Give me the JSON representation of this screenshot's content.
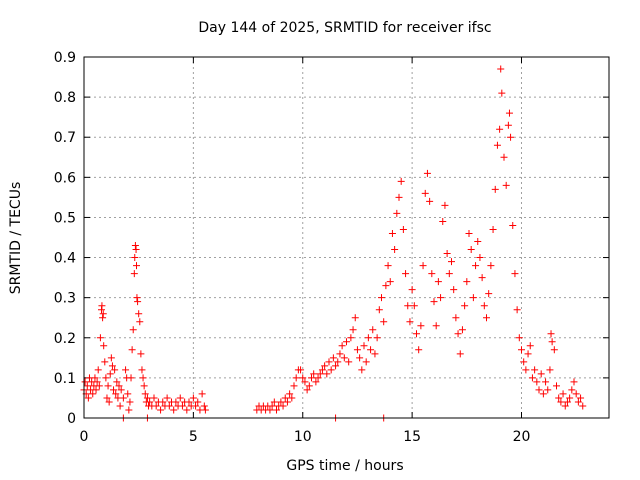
{
  "chart_data": {
    "type": "scatter",
    "title": "Day 144 of 2025, SRMTID for receiver ifsc",
    "xlabel": "GPS time / hours",
    "ylabel": "SRMTID / TECUs",
    "xlim": [
      0,
      24
    ],
    "ylim": [
      0,
      0.9
    ],
    "xticks": [
      "0",
      "5",
      "10",
      "15",
      "20"
    ],
    "xtick_values": [
      0,
      5,
      10,
      15,
      20
    ],
    "yticks": [
      "0",
      "0.1",
      "0.2",
      "0.3",
      "0.4",
      "0.5",
      "0.6",
      "0.7",
      "0.8",
      "0.9"
    ],
    "ytick_values": [
      0,
      0.1,
      0.2,
      0.3,
      0.4,
      0.5,
      0.6,
      0.7,
      0.8,
      0.9
    ],
    "grid": true,
    "marker": "+",
    "color": "#ff0000",
    "series": [
      {
        "name": "SRMTID",
        "points": [
          [
            0.0,
            0.07
          ],
          [
            0.05,
            0.09
          ],
          [
            0.1,
            0.06
          ],
          [
            0.15,
            0.08
          ],
          [
            0.2,
            0.05
          ],
          [
            0.25,
            0.1
          ],
          [
            0.3,
            0.07
          ],
          [
            0.35,
            0.09
          ],
          [
            0.4,
            0.06
          ],
          [
            0.45,
            0.08
          ],
          [
            0.5,
            0.1
          ],
          [
            0.55,
            0.07
          ],
          [
            0.6,
            0.09
          ],
          [
            0.65,
            0.12
          ],
          [
            0.7,
            0.08
          ],
          [
            0.75,
            0.2
          ],
          [
            0.8,
            0.27
          ],
          [
            0.82,
            0.28
          ],
          [
            0.85,
            0.25
          ],
          [
            0.88,
            0.26
          ],
          [
            0.9,
            0.18
          ],
          [
            0.95,
            0.14
          ],
          [
            1.0,
            0.1
          ],
          [
            1.05,
            0.05
          ],
          [
            1.1,
            0.08
          ],
          [
            1.15,
            0.04
          ],
          [
            1.2,
            0.11
          ],
          [
            1.25,
            0.15
          ],
          [
            1.3,
            0.13
          ],
          [
            1.35,
            0.07
          ],
          [
            1.4,
            0.12
          ],
          [
            1.45,
            0.06
          ],
          [
            1.5,
            0.09
          ],
          [
            1.55,
            0.05
          ],
          [
            1.6,
            0.08
          ],
          [
            1.65,
            0.03
          ],
          [
            1.7,
            0.07
          ],
          [
            1.8,
            0.05
          ],
          [
            1.9,
            0.12
          ],
          [
            1.95,
            0.1
          ],
          [
            2.0,
            0.06
          ],
          [
            2.05,
            0.02
          ],
          [
            2.1,
            0.04
          ],
          [
            2.15,
            0.1
          ],
          [
            2.2,
            0.17
          ],
          [
            2.25,
            0.22
          ],
          [
            2.3,
            0.36
          ],
          [
            2.32,
            0.4
          ],
          [
            2.35,
            0.43
          ],
          [
            2.38,
            0.42
          ],
          [
            2.4,
            0.38
          ],
          [
            2.42,
            0.3
          ],
          [
            2.45,
            0.29
          ],
          [
            2.5,
            0.26
          ],
          [
            2.55,
            0.24
          ],
          [
            2.6,
            0.16
          ],
          [
            2.65,
            0.12
          ],
          [
            2.7,
            0.1
          ],
          [
            2.75,
            0.08
          ],
          [
            2.8,
            0.06
          ],
          [
            2.85,
            0.04
          ],
          [
            2.9,
            0.05
          ],
          [
            2.95,
            0.03
          ],
          [
            3.0,
            0.04
          ],
          [
            3.1,
            0.03
          ],
          [
            3.2,
            0.05
          ],
          [
            3.3,
            0.03
          ],
          [
            3.4,
            0.04
          ],
          [
            3.5,
            0.02
          ],
          [
            3.6,
            0.04
          ],
          [
            3.7,
            0.03
          ],
          [
            3.8,
            0.05
          ],
          [
            3.9,
            0.03
          ],
          [
            4.0,
            0.04
          ],
          [
            4.1,
            0.02
          ],
          [
            4.2,
            0.04
          ],
          [
            4.3,
            0.03
          ],
          [
            4.4,
            0.05
          ],
          [
            4.5,
            0.03
          ],
          [
            4.6,
            0.04
          ],
          [
            4.7,
            0.02
          ],
          [
            4.8,
            0.04
          ],
          [
            4.9,
            0.03
          ],
          [
            5.0,
            0.05
          ],
          [
            5.1,
            0.03
          ],
          [
            5.2,
            0.04
          ],
          [
            5.3,
            0.02
          ],
          [
            5.4,
            0.06
          ],
          [
            5.5,
            0.03
          ],
          [
            5.55,
            0.02
          ],
          [
            1.8,
            0.0
          ],
          [
            2.9,
            0.0
          ],
          [
            7.9,
            0.02
          ],
          [
            8.0,
            0.03
          ],
          [
            8.1,
            0.02
          ],
          [
            8.2,
            0.03
          ],
          [
            8.3,
            0.02
          ],
          [
            8.4,
            0.03
          ],
          [
            8.5,
            0.02
          ],
          [
            8.6,
            0.03
          ],
          [
            8.7,
            0.04
          ],
          [
            8.8,
            0.02
          ],
          [
            8.9,
            0.03
          ],
          [
            9.0,
            0.04
          ],
          [
            9.1,
            0.03
          ],
          [
            9.2,
            0.05
          ],
          [
            9.3,
            0.04
          ],
          [
            9.4,
            0.06
          ],
          [
            9.5,
            0.05
          ],
          [
            9.6,
            0.08
          ],
          [
            9.7,
            0.1
          ],
          [
            9.8,
            0.12
          ],
          [
            9.9,
            0.12
          ],
          [
            10.0,
            0.1
          ],
          [
            10.1,
            0.09
          ],
          [
            10.2,
            0.07
          ],
          [
            10.3,
            0.08
          ],
          [
            10.4,
            0.1
          ],
          [
            10.5,
            0.11
          ],
          [
            10.6,
            0.09
          ],
          [
            10.7,
            0.1
          ],
          [
            10.8,
            0.11
          ],
          [
            10.9,
            0.12
          ],
          [
            11.0,
            0.13
          ],
          [
            11.1,
            0.11
          ],
          [
            11.2,
            0.14
          ],
          [
            11.3,
            0.12
          ],
          [
            11.4,
            0.15
          ],
          [
            11.5,
            0.13
          ],
          [
            11.6,
            0.14
          ],
          [
            11.7,
            0.16
          ],
          [
            11.8,
            0.18
          ],
          [
            11.9,
            0.15
          ],
          [
            12.0,
            0.19
          ],
          [
            12.1,
            0.14
          ],
          [
            12.2,
            0.2
          ],
          [
            12.3,
            0.22
          ],
          [
            12.4,
            0.25
          ],
          [
            12.5,
            0.17
          ],
          [
            12.6,
            0.15
          ],
          [
            12.7,
            0.12
          ],
          [
            12.8,
            0.18
          ],
          [
            12.9,
            0.14
          ],
          [
            13.0,
            0.2
          ],
          [
            13.1,
            0.17
          ],
          [
            13.2,
            0.22
          ],
          [
            13.3,
            0.16
          ],
          [
            13.4,
            0.2
          ],
          [
            13.5,
            0.27
          ],
          [
            13.6,
            0.3
          ],
          [
            13.7,
            0.24
          ],
          [
            13.8,
            0.33
          ],
          [
            13.9,
            0.38
          ],
          [
            14.0,
            0.34
          ],
          [
            14.1,
            0.46
          ],
          [
            14.2,
            0.42
          ],
          [
            14.3,
            0.51
          ],
          [
            14.4,
            0.55
          ],
          [
            14.5,
            0.59
          ],
          [
            14.6,
            0.47
          ],
          [
            14.7,
            0.36
          ],
          [
            14.8,
            0.28
          ],
          [
            14.9,
            0.24
          ],
          [
            15.0,
            0.32
          ],
          [
            15.1,
            0.28
          ],
          [
            15.2,
            0.21
          ],
          [
            15.3,
            0.17
          ],
          [
            15.4,
            0.23
          ],
          [
            15.5,
            0.38
          ],
          [
            15.6,
            0.56
          ],
          [
            15.7,
            0.61
          ],
          [
            15.8,
            0.54
          ],
          [
            15.9,
            0.36
          ],
          [
            16.0,
            0.29
          ],
          [
            16.1,
            0.23
          ],
          [
            16.2,
            0.34
          ],
          [
            16.3,
            0.3
          ],
          [
            16.4,
            0.49
          ],
          [
            16.5,
            0.53
          ],
          [
            16.6,
            0.41
          ],
          [
            16.7,
            0.36
          ],
          [
            16.8,
            0.39
          ],
          [
            16.9,
            0.32
          ],
          [
            17.0,
            0.25
          ],
          [
            17.1,
            0.21
          ],
          [
            17.2,
            0.16
          ],
          [
            17.3,
            0.22
          ],
          [
            17.4,
            0.28
          ],
          [
            17.5,
            0.34
          ],
          [
            17.6,
            0.46
          ],
          [
            17.7,
            0.42
          ],
          [
            17.8,
            0.3
          ],
          [
            17.9,
            0.38
          ],
          [
            18.0,
            0.44
          ],
          [
            18.1,
            0.4
          ],
          [
            18.2,
            0.35
          ],
          [
            18.3,
            0.28
          ],
          [
            18.4,
            0.25
          ],
          [
            18.5,
            0.31
          ],
          [
            18.6,
            0.38
          ],
          [
            18.7,
            0.47
          ],
          [
            18.8,
            0.57
          ],
          [
            18.9,
            0.68
          ],
          [
            19.0,
            0.72
          ],
          [
            19.05,
            0.87
          ],
          [
            19.1,
            0.81
          ],
          [
            19.2,
            0.65
          ],
          [
            19.3,
            0.58
          ],
          [
            19.4,
            0.73
          ],
          [
            19.45,
            0.76
          ],
          [
            19.5,
            0.7
          ],
          [
            19.6,
            0.48
          ],
          [
            19.7,
            0.36
          ],
          [
            19.8,
            0.27
          ],
          [
            19.9,
            0.2
          ],
          [
            20.0,
            0.17
          ],
          [
            20.1,
            0.14
          ],
          [
            20.2,
            0.12
          ],
          [
            20.3,
            0.16
          ],
          [
            20.4,
            0.18
          ],
          [
            20.5,
            0.1
          ],
          [
            20.6,
            0.12
          ],
          [
            20.7,
            0.09
          ],
          [
            20.8,
            0.07
          ],
          [
            20.9,
            0.11
          ],
          [
            21.0,
            0.06
          ],
          [
            21.1,
            0.09
          ],
          [
            21.2,
            0.07
          ],
          [
            21.3,
            0.12
          ],
          [
            21.35,
            0.21
          ],
          [
            21.4,
            0.19
          ],
          [
            21.5,
            0.17
          ],
          [
            21.6,
            0.08
          ],
          [
            21.7,
            0.05
          ],
          [
            21.8,
            0.04
          ],
          [
            21.9,
            0.06
          ],
          [
            22.0,
            0.03
          ],
          [
            22.1,
            0.04
          ],
          [
            22.2,
            0.05
          ],
          [
            22.3,
            0.07
          ],
          [
            22.4,
            0.09
          ],
          [
            22.5,
            0.06
          ],
          [
            22.6,
            0.04
          ],
          [
            22.7,
            0.05
          ],
          [
            22.8,
            0.03
          ],
          [
            11.5,
            0.0
          ],
          [
            13.7,
            0.0
          ]
        ]
      }
    ]
  }
}
